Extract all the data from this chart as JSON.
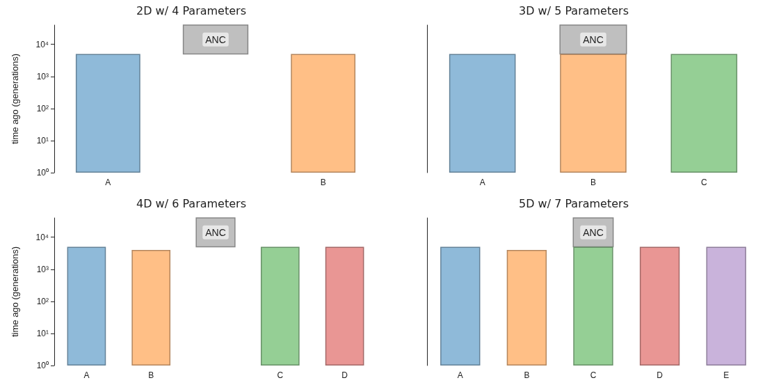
{
  "chart_data": [
    {
      "type": "bar",
      "title": "2D w/ 4 Parameters",
      "ylabel": "time ago (generations)",
      "log": "y",
      "ylim": [
        1,
        40000
      ],
      "yticks": [
        {
          "value": 1,
          "label": "10⁰"
        },
        {
          "value": 10,
          "label": "10¹"
        },
        {
          "value": 100,
          "label": "10²"
        },
        {
          "value": 1000,
          "label": "10³"
        },
        {
          "value": 10000,
          "label": "10⁴"
        }
      ],
      "categories": [
        "A",
        null,
        "B"
      ],
      "series": [
        {
          "colors": [
            "#8fbad9",
            null,
            "#ffbf86"
          ],
          "values": [
            5000,
            null,
            5000
          ]
        },
        {
          "color": "#bfbfbf",
          "base": [
            null,
            5000,
            null
          ],
          "values": [
            null,
            35000,
            null
          ],
          "value_labels": [
            null,
            "ANC",
            null
          ]
        }
      ]
    },
    {
      "type": "bar",
      "title": "3D w/ 5 Parameters",
      "tick_labels": "x",
      "log": "y",
      "ylim": [
        1,
        40000
      ],
      "categories": [
        "A",
        "B",
        "C"
      ],
      "series": [
        {
          "colors": [
            "#8fbad9",
            "#ffbf86",
            "#95cf95"
          ],
          "values": [
            5000,
            5000,
            5000
          ]
        },
        {
          "color": "#bfbfbf",
          "base": [
            null,
            5000,
            null
          ],
          "values": [
            null,
            35000,
            null
          ],
          "value_labels": [
            null,
            "ANC",
            null
          ]
        }
      ]
    },
    {
      "type": "bar",
      "title": "4D w/ 6 Parameters",
      "ylabel": "time ago (generations)",
      "log": "y",
      "ylim": [
        1,
        40000
      ],
      "yticks": [
        {
          "value": 1,
          "label": "10⁰"
        },
        {
          "value": 10,
          "label": "10¹"
        },
        {
          "value": 100,
          "label": "10²"
        },
        {
          "value": 1000,
          "label": "10³"
        },
        {
          "value": 10000,
          "label": "10⁴"
        }
      ],
      "categories": [
        "A",
        "B",
        null,
        "C",
        "D"
      ],
      "series": [
        {
          "colors": [
            "#8fbad9",
            "#ffbf86",
            null,
            "#95cf95",
            "#e99694"
          ],
          "values": [
            5000,
            4000,
            null,
            5000,
            5000
          ]
        },
        {
          "color": "#bfbfbf",
          "base": [
            null,
            null,
            5000,
            null,
            null
          ],
          "values": [
            null,
            null,
            35000,
            null,
            null
          ],
          "value_labels": [
            null,
            null,
            "ANC",
            null,
            null
          ]
        }
      ]
    },
    {
      "type": "bar",
      "title": "5D w/ 7 Parameters",
      "tick_labels": "x",
      "log": "y",
      "ylim": [
        1,
        40000
      ],
      "categories": [
        "A",
        "B",
        "C",
        "D",
        "E"
      ],
      "series": [
        {
          "colors": [
            "#8fbad9",
            "#ffbf86",
            "#95cf95",
            "#e99694",
            "#c9b3db"
          ],
          "values": [
            5000,
            4000,
            5000,
            5000,
            5000
          ]
        },
        {
          "color": "#bfbfbf",
          "base": [
            null,
            null,
            5000,
            null,
            null
          ],
          "values": [
            null,
            null,
            35000,
            null,
            null
          ],
          "value_labels": [
            null,
            null,
            "ANC",
            null,
            null
          ]
        }
      ]
    }
  ]
}
